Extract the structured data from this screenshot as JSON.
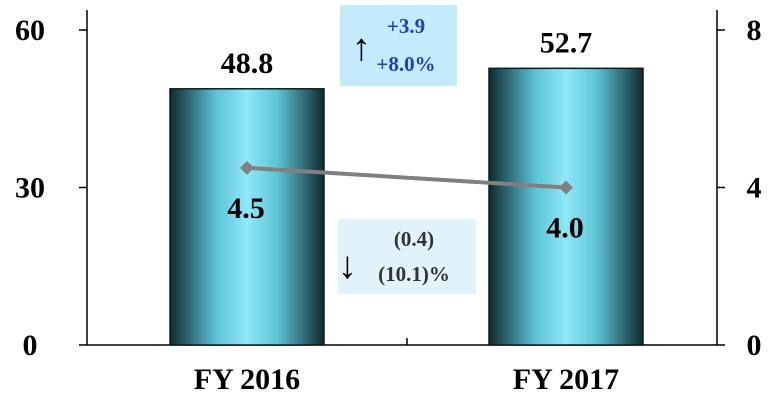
{
  "chart_data": {
    "type": "bar",
    "categories": [
      "FY 2016",
      "FY 2017"
    ],
    "series": [
      {
        "values": [
          48.8,
          52.7
        ],
        "axis": "left",
        "kind": "bar"
      },
      {
        "values": [
          4.5,
          4.0
        ],
        "axis": "right",
        "kind": "line"
      }
    ],
    "left_axis": {
      "ylim": [
        0,
        60
      ],
      "ticks": [
        "0",
        "30",
        "60"
      ]
    },
    "right_axis": {
      "ylim": [
        0,
        8
      ],
      "ticks": [
        "0",
        "4",
        "8"
      ]
    },
    "bar_labels": [
      "48.8",
      "52.7"
    ],
    "line_labels": [
      "4.5",
      "4.0"
    ],
    "annotations": {
      "increase": {
        "arrow": "↑",
        "lines": [
          "+3.9",
          "+8.0%"
        ]
      },
      "decrease": {
        "arrow": "↓",
        "lines": [
          "(0.4)",
          "(10.1)%"
        ]
      }
    },
    "grid": false,
    "legend": "none",
    "colors": {
      "bar_center": "#8fe8f7",
      "bar_edge": "#0f2a30",
      "line": "#808080",
      "annotation_up_bg": "#c3ebfb",
      "annotation_up_text": "#1f3fbf",
      "annotation_down_bg": "#e0f3fb",
      "annotation_down_text": "#333333"
    }
  }
}
